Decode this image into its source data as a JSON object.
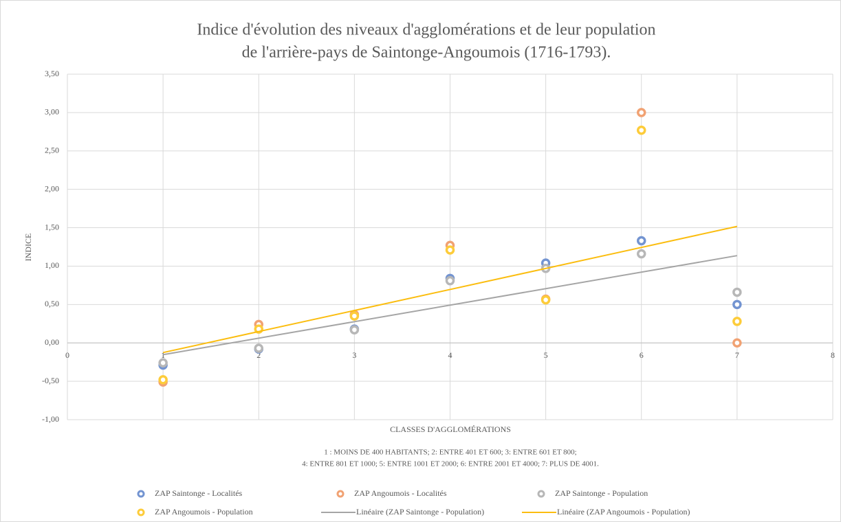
{
  "chart_data": {
    "type": "scatter",
    "title": [
      "Indice d'évolution des niveaux d'agglomérations et de leur population",
      "de l'arrière-pays de Saintonge-Angoumois (1716-1793)."
    ],
    "xlabel": "CLASSES D'AGGLOMÉRATIONS",
    "ylabel": "INDICE",
    "note": [
      "1 : MOINS DE 400 HABITANTS; 2: ENTRE 401 ET 600; 3: ENTRE 601 ET 800;",
      "4: ENTRE 801 ET 1000; 5: ENTRE 1001 ET 2000; 6: ENTRE 2001 ET 4000; 7: PLUS DE 4001."
    ],
    "x": [
      1,
      2,
      3,
      4,
      5,
      6,
      7
    ],
    "series": [
      {
        "name": "ZAP Saintonge - Localités",
        "color": "#7394d1",
        "values": [
          -0.29,
          -0.08,
          0.18,
          0.84,
          1.04,
          1.33,
          0.5
        ]
      },
      {
        "name": "ZAP Angoumois - Localités",
        "color": "#f1a273",
        "values": [
          -0.51,
          0.24,
          0.37,
          1.27,
          0.57,
          3.0,
          0.0
        ]
      },
      {
        "name": "ZAP Saintonge - Population",
        "color": "#b7b7b7",
        "values": [
          -0.26,
          -0.07,
          0.17,
          0.81,
          0.97,
          1.16,
          0.66
        ],
        "trendline": {
          "name": "Linéaire (ZAP Saintonge - Population)",
          "color": "#a5a5a5"
        }
      },
      {
        "name": "ZAP Angoumois - Population",
        "color": "#fdcc3a",
        "values": [
          -0.48,
          0.18,
          0.35,
          1.21,
          0.56,
          2.77,
          0.28
        ],
        "trendline": {
          "name": "Linéaire (ZAP Angoumois - Population)",
          "color": "#fbbd0f"
        }
      }
    ],
    "xlim": [
      0,
      8
    ],
    "xticks": [
      0,
      1,
      2,
      3,
      4,
      5,
      6,
      7,
      8
    ],
    "ylim": [
      -1,
      3.5
    ],
    "yticks": [
      {
        "value": -1,
        "label": "-1,00"
      },
      {
        "value": -0.5,
        "label": "-0,50"
      },
      {
        "value": 0,
        "label": "0,00"
      },
      {
        "value": 0.5,
        "label": "0,50"
      },
      {
        "value": 1,
        "label": "1,00"
      },
      {
        "value": 1.5,
        "label": "1,50"
      },
      {
        "value": 2,
        "label": "2,00"
      },
      {
        "value": 2.5,
        "label": "2,50"
      },
      {
        "value": 3,
        "label": "3,00"
      },
      {
        "value": 3.5,
        "label": "3,50"
      }
    ],
    "grid": true
  }
}
